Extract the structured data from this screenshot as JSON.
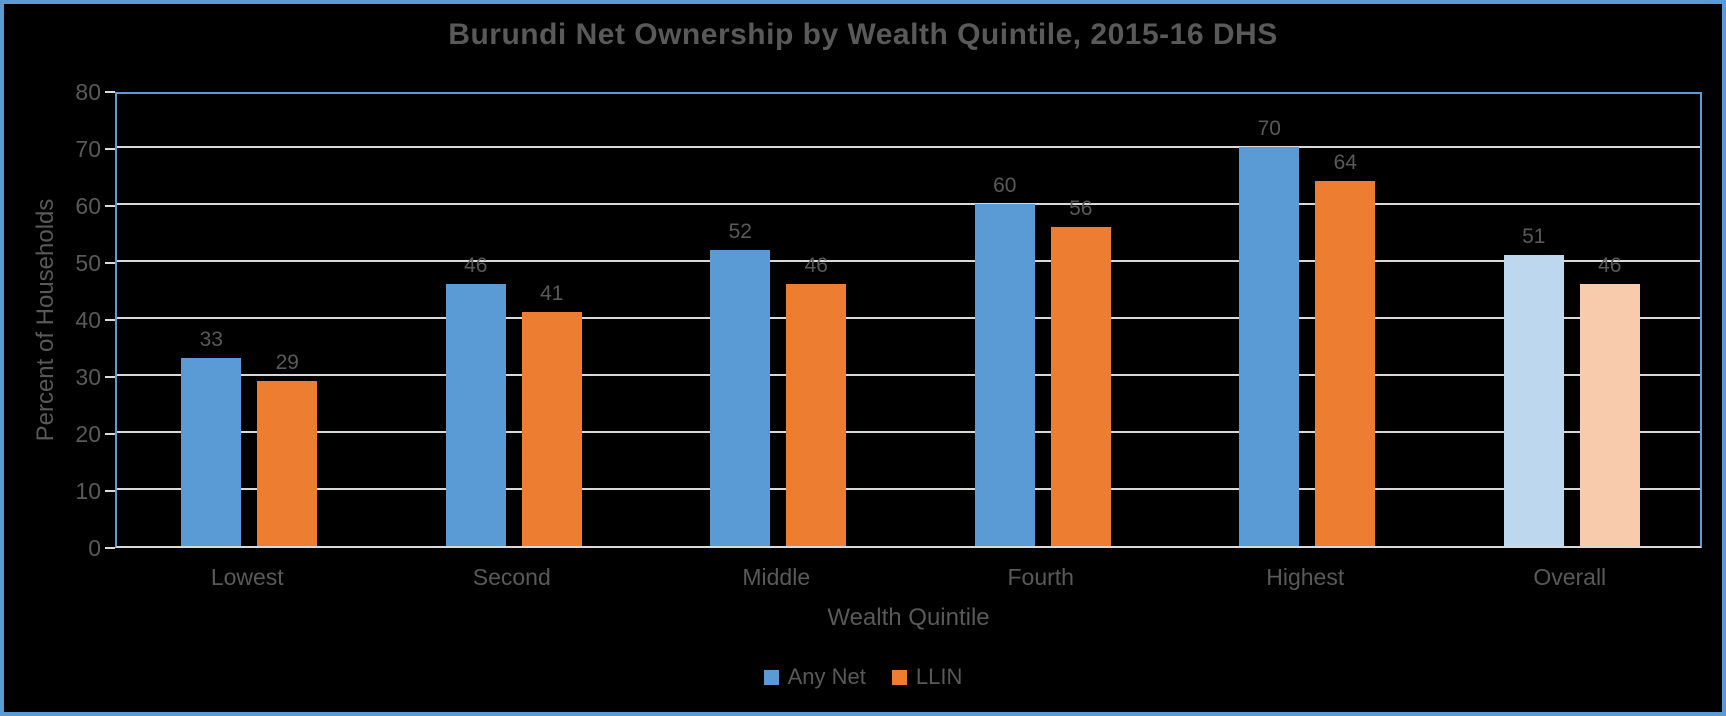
{
  "chart_data": {
    "type": "bar",
    "title": "Burundi Net Ownership by Wealth Quintile, 2015-16 DHS",
    "categories": [
      "Lowest",
      "Second",
      "Middle",
      "Fourth",
      "Highest",
      "Overall"
    ],
    "series": [
      {
        "name": "Any Net",
        "color": "#5B9BD5",
        "overall_color": "#BDD7EE",
        "values": [
          33,
          46,
          52,
          60,
          70,
          51
        ]
      },
      {
        "name": "LLIN",
        "color": "#ED7D31",
        "overall_color": "#F8CBAD",
        "values": [
          29,
          41,
          46,
          56,
          64,
          46
        ]
      }
    ],
    "xlabel": "Wealth Quintile",
    "ylabel": "Percent of Households",
    "ylim": [
      0,
      80
    ],
    "ytick_step": 10,
    "grid": true,
    "data_labels": true,
    "legend_position": "bottom",
    "highlight_category": "Overall"
  },
  "colors": {
    "background": "#000000",
    "outer_border": "#5B9BD5",
    "plot_border": "#5B9BD5",
    "gridline": "#D9D9D9",
    "axis_line": "#D9D9D9",
    "text": "#595959"
  }
}
